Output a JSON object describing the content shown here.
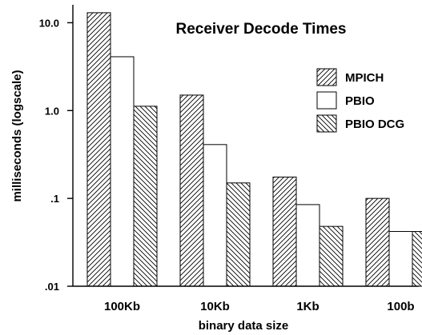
{
  "chart_data": {
    "type": "bar",
    "title": "Receiver Decode Times",
    "xlabel": "binary data size",
    "ylabel": "milliseconds (logscale)",
    "yscale": "log",
    "ylim": [
      0.01,
      16
    ],
    "yticks": [
      {
        "value": 0.01,
        "label": ".01"
      },
      {
        "value": 0.1,
        "label": ".1"
      },
      {
        "value": 1.0,
        "label": "1.0"
      },
      {
        "value": 10.0,
        "label": "10.0"
      }
    ],
    "categories": [
      "100Kb",
      "10Kb",
      "1Kb",
      "100b"
    ],
    "series": [
      {
        "name": "MPICH",
        "pattern": "hatch-forward",
        "values": [
          13.0,
          1.5,
          0.175,
          0.1
        ]
      },
      {
        "name": "PBIO",
        "pattern": "blank",
        "values": [
          4.1,
          0.41,
          0.085,
          0.042
        ]
      },
      {
        "name": "PBIO DCG",
        "pattern": "hatch-back",
        "values": [
          1.12,
          0.15,
          0.048,
          0.042
        ]
      }
    ],
    "legend_position": "top-right",
    "grid": false,
    "colors": {
      "stroke": "#000000",
      "fill": "#ffffff"
    }
  }
}
